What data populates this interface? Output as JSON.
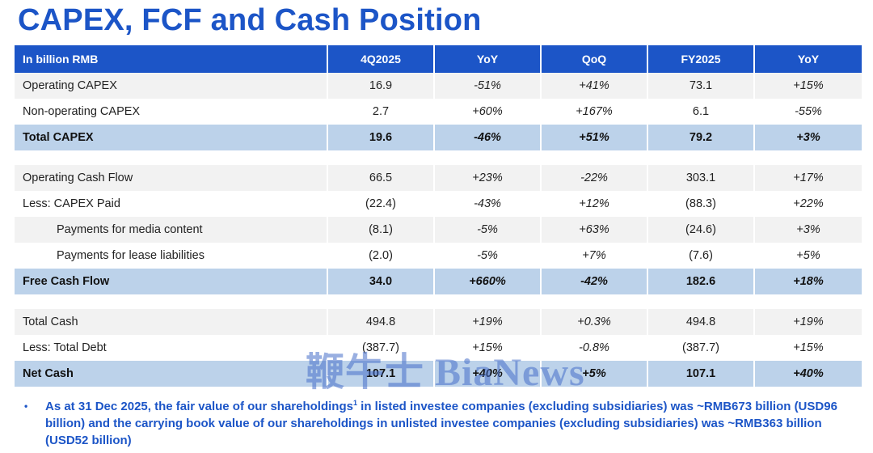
{
  "title": "CAPEX, FCF and Cash Position",
  "table": {
    "headers": [
      "In billion RMB",
      "4Q2025",
      "YoY",
      "QoQ",
      "FY2025",
      "YoY"
    ],
    "section1": [
      {
        "label": "Operating CAPEX",
        "q": "16.9",
        "yoy": "-51%",
        "qoq": "+41%",
        "fy": "73.1",
        "fyyoy": "+15%"
      },
      {
        "label": "Non-operating CAPEX",
        "q": "2.7",
        "yoy": "+60%",
        "qoq": "+167%",
        "fy": "6.1",
        "fyyoy": "-55%"
      },
      {
        "label": "Total CAPEX",
        "q": "19.6",
        "yoy": "-46%",
        "qoq": "+51%",
        "fy": "79.2",
        "fyyoy": "+3%"
      }
    ],
    "section2": [
      {
        "label": "Operating Cash Flow",
        "q": "66.5",
        "yoy": "+23%",
        "qoq": "-22%",
        "fy": "303.1",
        "fyyoy": "+17%"
      },
      {
        "label": "Less: CAPEX Paid",
        "q": "(22.4)",
        "yoy": "-43%",
        "qoq": "+12%",
        "fy": "(88.3)",
        "fyyoy": "+22%"
      },
      {
        "label": "Payments for media content",
        "q": "(8.1)",
        "yoy": "-5%",
        "qoq": "+63%",
        "fy": "(24.6)",
        "fyyoy": "+3%"
      },
      {
        "label": "Payments for lease liabilities",
        "q": "(2.0)",
        "yoy": "-5%",
        "qoq": "+7%",
        "fy": "(7.6)",
        "fyyoy": "+5%"
      },
      {
        "label": "Free Cash Flow",
        "q": "34.0",
        "yoy": "+660%",
        "qoq": "-42%",
        "fy": "182.6",
        "fyyoy": "+18%"
      }
    ],
    "section3": [
      {
        "label": "Total Cash",
        "q": "494.8",
        "yoy": "+19%",
        "qoq": "+0.3%",
        "fy": "494.8",
        "fyyoy": "+19%"
      },
      {
        "label": "Less: Total Debt",
        "q": "(387.7)",
        "yoy": "+15%",
        "qoq": "-0.8%",
        "fy": "(387.7)",
        "fyyoy": "+15%"
      },
      {
        "label": "Net Cash",
        "q": "107.1",
        "yoy": "+40%",
        "qoq": "+5%",
        "fy": "107.1",
        "fyyoy": "+40%"
      }
    ]
  },
  "note": {
    "bullet": "•",
    "text_before": "As at 31 Dec 2025, the fair value of our shareholdings",
    "superscript": "1",
    "text_after": " in listed investee companies (excluding subsidiaries) was ~RMB673 billion (USD96 billion) and the carrying book value of our shareholdings in unlisted investee companies (excluding subsidiaries) was ~RMB363 billion (USD52 billion)"
  },
  "watermark": "鞭牛士 BiaNews",
  "colors": {
    "brand_blue": "#1c55c7",
    "total_row": "#bcd2ea",
    "stripe": "#f2f2f2"
  }
}
